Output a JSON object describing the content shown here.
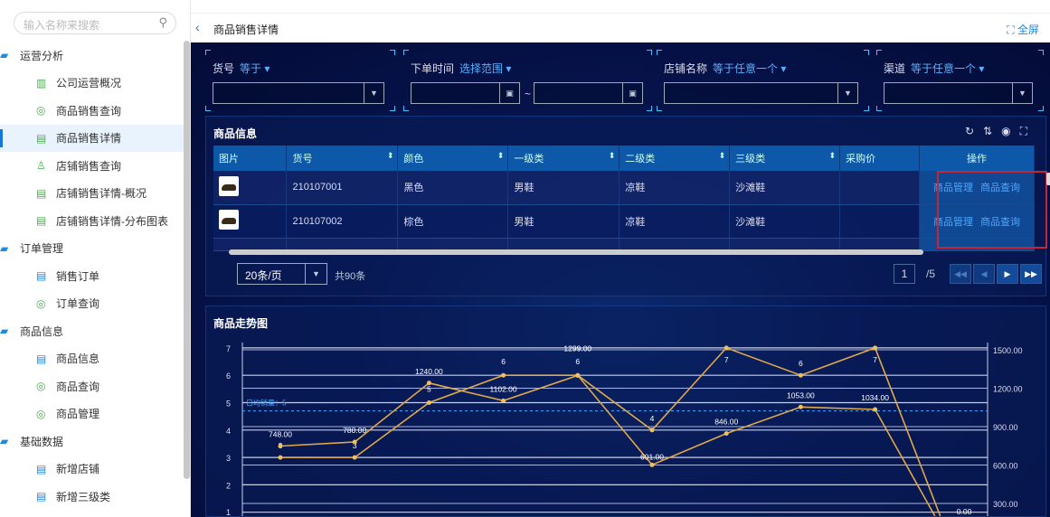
{
  "sidebar": {
    "search_placeholder": "输入名称来搜索",
    "items": [
      {
        "label": "运营分析",
        "type": "group",
        "icon": "folder-open-icon"
      },
      {
        "label": "公司运营概况",
        "type": "sub",
        "icon": "bar-chart-icon"
      },
      {
        "label": "商品销售查询",
        "type": "sub",
        "icon": "eye-icon"
      },
      {
        "label": "商品销售详情",
        "type": "sub",
        "icon": "document-icon",
        "active": true
      },
      {
        "label": "店铺销售查询",
        "type": "sub",
        "icon": "user-icon"
      },
      {
        "label": "店铺销售详情-概况",
        "type": "sub",
        "icon": "document-icon"
      },
      {
        "label": "店铺销售详情-分布图表",
        "type": "sub",
        "icon": "document-icon"
      },
      {
        "label": "订单管理",
        "type": "group",
        "icon": "folder-open-icon"
      },
      {
        "label": "销售订单",
        "type": "sub",
        "icon": "document-icon"
      },
      {
        "label": "订单查询",
        "type": "sub",
        "icon": "eye-icon"
      },
      {
        "label": "商品信息",
        "type": "group",
        "icon": "folder-open-icon"
      },
      {
        "label": "商品信息",
        "type": "sub",
        "icon": "document-icon"
      },
      {
        "label": "商品查询",
        "type": "sub",
        "icon": "eye-icon"
      },
      {
        "label": "商品管理",
        "type": "sub",
        "icon": "eye-icon"
      },
      {
        "label": "基础数据",
        "type": "group",
        "icon": "folder-open-icon"
      },
      {
        "label": "新增店铺",
        "type": "sub",
        "icon": "document-icon"
      },
      {
        "label": "新增三级类",
        "type": "sub",
        "icon": "document-icon"
      }
    ]
  },
  "header": {
    "title": "商品销售详情",
    "fullscreen": "全屏"
  },
  "filters": [
    {
      "label": "货号",
      "op": "等于 ▾"
    },
    {
      "label": "下单时间",
      "op": "选择范围 ▾",
      "range_sep": "~"
    },
    {
      "label": "店铺名称",
      "op": "等于任意一个 ▾"
    },
    {
      "label": "渠道",
      "op": "等于任意一个 ▾"
    }
  ],
  "table": {
    "title": "商品信息",
    "columns": [
      "图片",
      "货号",
      "颜色",
      "一级类",
      "二级类",
      "三级类",
      "采购价",
      "操作"
    ],
    "rows": [
      {
        "sku": "210107001",
        "color": "黑色",
        "cat1": "男鞋",
        "cat2": "凉鞋",
        "cat3": "沙滩鞋",
        "price": ""
      },
      {
        "sku": "210107002",
        "color": "棕色",
        "cat1": "男鞋",
        "cat2": "凉鞋",
        "cat3": "沙滩鞋",
        "price": ""
      }
    ],
    "actions": [
      "商品管理",
      "商品查询"
    ],
    "page_size": "20条/页",
    "total": "共90条",
    "page": "1",
    "pages": "/5"
  },
  "chart_data": {
    "type": "line",
    "title": "商品走势图",
    "left_axis": {
      "ticks": [
        "1",
        "2",
        "3",
        "4",
        "5",
        "6",
        "7"
      ],
      "range": [
        0,
        7
      ]
    },
    "right_axis": {
      "ticks": [
        "300.00",
        "600.00",
        "900.00",
        "1200.00",
        "1500.00"
      ],
      "range": [
        0,
        1500
      ]
    },
    "grid": true,
    "series": [
      {
        "axis": "left",
        "values": [
          3,
          3,
          5,
          6,
          6,
          4,
          7,
          6,
          7,
          0
        ],
        "labels": [
          "3",
          "3",
          "5",
          "6",
          "6",
          "4",
          "7",
          "6",
          "7",
          ""
        ]
      },
      {
        "axis": "right",
        "values": [
          748,
          780,
          1240,
          1102,
          1299,
          601,
          846,
          1053,
          1034,
          0
        ],
        "labels": [
          "748.00",
          "780.00",
          "1240.00",
          "1102.00",
          "1299.00",
          "601.00",
          "846.00",
          "1053.00",
          "1034.00",
          "0.00"
        ]
      }
    ],
    "mark_line": {
      "label": "日均销量：5",
      "value": 4.7
    },
    "colors": {
      "line": "#e0a84a",
      "mark": "#4aa8ff"
    }
  }
}
